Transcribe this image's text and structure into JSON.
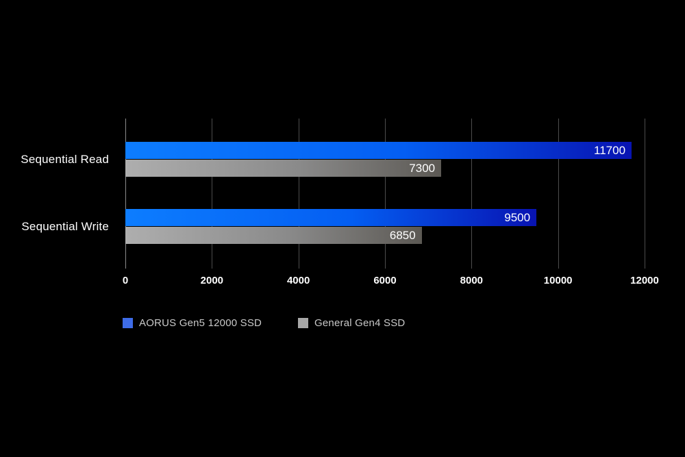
{
  "chart_data": {
    "type": "bar",
    "orientation": "horizontal",
    "title": "",
    "categories": [
      "Sequential Read",
      "Sequential Write"
    ],
    "series": [
      {
        "name": "AORUS Gen5 12000 SSD",
        "values": [
          11700,
          9500
        ],
        "bar_color_start": "#0d7dff",
        "bar_color_mid": "#045ef2",
        "bar_color_end": "#0813b2",
        "legend_swatch_color": "#3e6ce8"
      },
      {
        "name": "General Gen4 SSD",
        "values": [
          7300,
          6850
        ],
        "bar_color_start": "#aeaeae",
        "bar_color_mid": "#8a8a8a",
        "bar_color_end": "#5c5954",
        "legend_swatch_color": "#a8a8a8"
      }
    ],
    "xlim": [
      0,
      12000
    ],
    "xticks": [
      0,
      2000,
      4000,
      6000,
      8000,
      10000,
      12000
    ],
    "grid": true,
    "legend_position": "bottom",
    "background_color": "#000000",
    "gridline_color": "#4d4d4d",
    "zero_line_color": "#8c8c8c",
    "value_label_color": "#ffffff",
    "axis_label_color": "#ffffff",
    "legend_text_color": "#c9c9c9"
  }
}
